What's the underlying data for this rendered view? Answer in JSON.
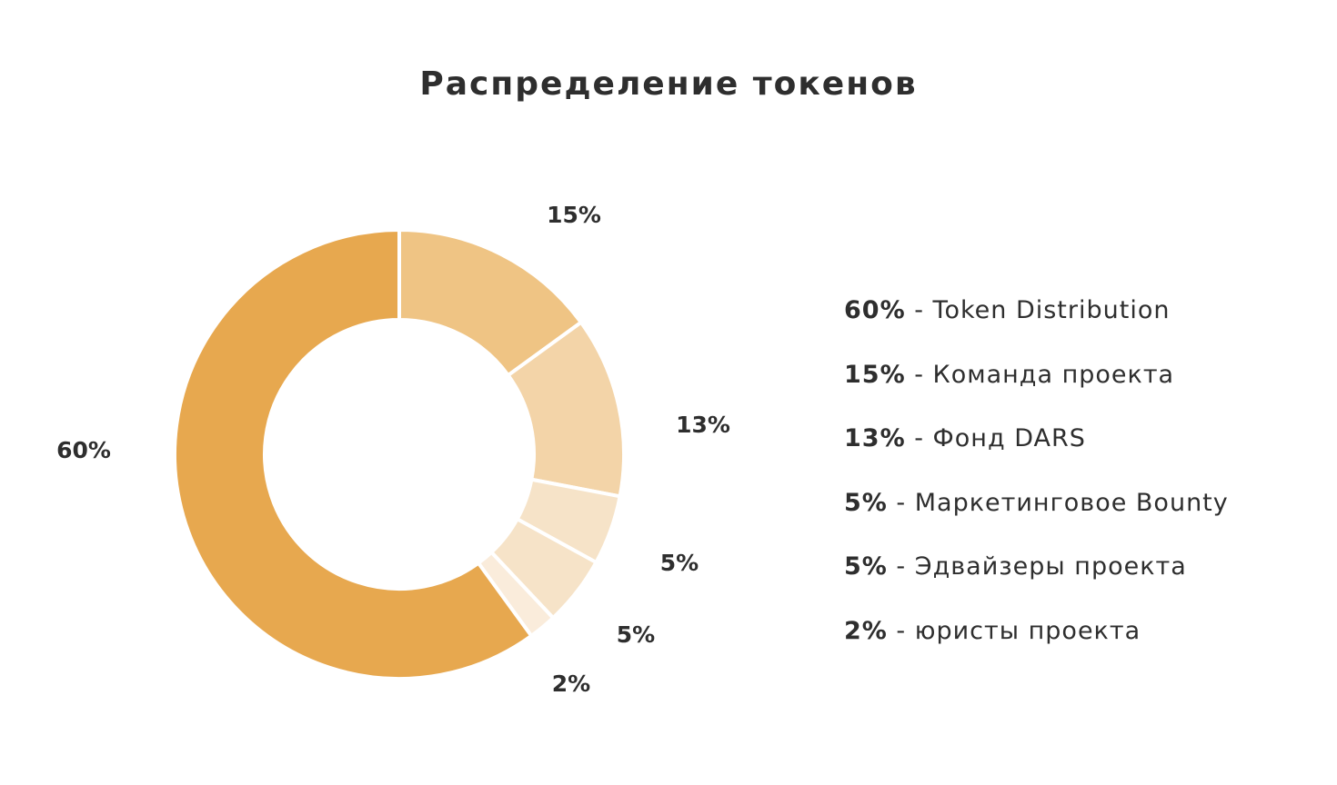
{
  "title": "Распределение токенов",
  "chart_data": {
    "type": "pie",
    "title": "Распределение токенов",
    "donut": true,
    "slices": [
      {
        "value": 60,
        "label": "60%",
        "legend_pct": "60%",
        "legend_text": " - Token Distribution",
        "color": "#e7a84f"
      },
      {
        "value": 15,
        "label": "15%",
        "legend_pct": "15%",
        "legend_text": " - Команда проекта",
        "color": "#efc484"
      },
      {
        "value": 13,
        "label": "13%",
        "legend_pct": "13%",
        "legend_text": " - Фонд DARS",
        "color": "#f3d4a8"
      },
      {
        "value": 5,
        "label": "5%",
        "legend_pct": "5%",
        "legend_text": " - Маркетинговое Bounty",
        "color": "#f6e3c8"
      },
      {
        "value": 5,
        "label": "5%",
        "legend_pct": "5%",
        "legend_text": " - Эдвайзеры проекта",
        "color": "#f6e3c8"
      },
      {
        "value": 2,
        "label": "2%",
        "legend_pct": "2%",
        "legend_text": " - юристы проекта",
        "color": "#faecdb"
      }
    ],
    "legend_position": "right"
  }
}
